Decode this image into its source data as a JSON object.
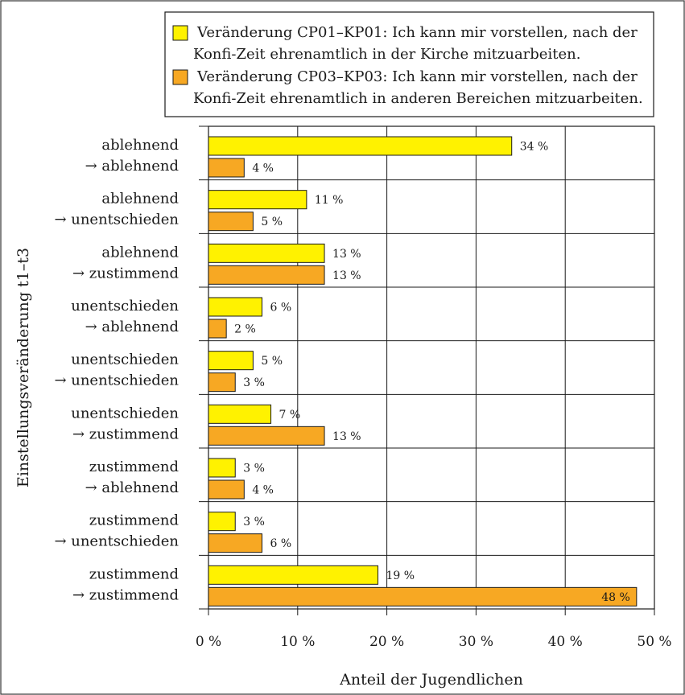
{
  "chart_data": {
    "type": "bar",
    "orientation": "horizontal",
    "xlabel": "Anteil der Jugendlichen",
    "ylabel": "Einstellungsveränderung t1–t3",
    "xlim": [
      0,
      50
    ],
    "x_ticks": [
      "0 %",
      "10 %",
      "20 %",
      "30 %",
      "40 %",
      "50 %"
    ],
    "grid": true,
    "legend_position": "top",
    "unit_suffix": " %",
    "categories": [
      [
        "ablehnend",
        "→ ablehnend"
      ],
      [
        "ablehnend",
        "→ unentschieden"
      ],
      [
        "ablehnend",
        "→ zustimmend"
      ],
      [
        "unentschieden",
        "→ ablehnend"
      ],
      [
        "unentschieden",
        "→ unentschieden"
      ],
      [
        "unentschieden",
        "→ zustimmend"
      ],
      [
        "zustimmend",
        "→ ablehnend"
      ],
      [
        "zustimmend",
        "→ unentschieden"
      ],
      [
        "zustimmend",
        "→ zustimmend"
      ]
    ],
    "series": [
      {
        "name": [
          "Veränderung CP01–KP01: Ich kann mir vorstellen, nach der",
          "Konfi-Zeit ehrenamtlich in der Kirche mitzuarbeiten."
        ],
        "color": "#fff200",
        "values": [
          34,
          11,
          13,
          6,
          5,
          7,
          3,
          3,
          19
        ]
      },
      {
        "name": [
          "Veränderung CP03–KP03: Ich kann mir vorstellen, nach der",
          "Konfi-Zeit ehrenamtlich in anderen Bereichen mitzuarbeiten."
        ],
        "color": "#f7a823",
        "values": [
          4,
          5,
          13,
          2,
          3,
          13,
          4,
          6,
          48
        ]
      }
    ]
  }
}
